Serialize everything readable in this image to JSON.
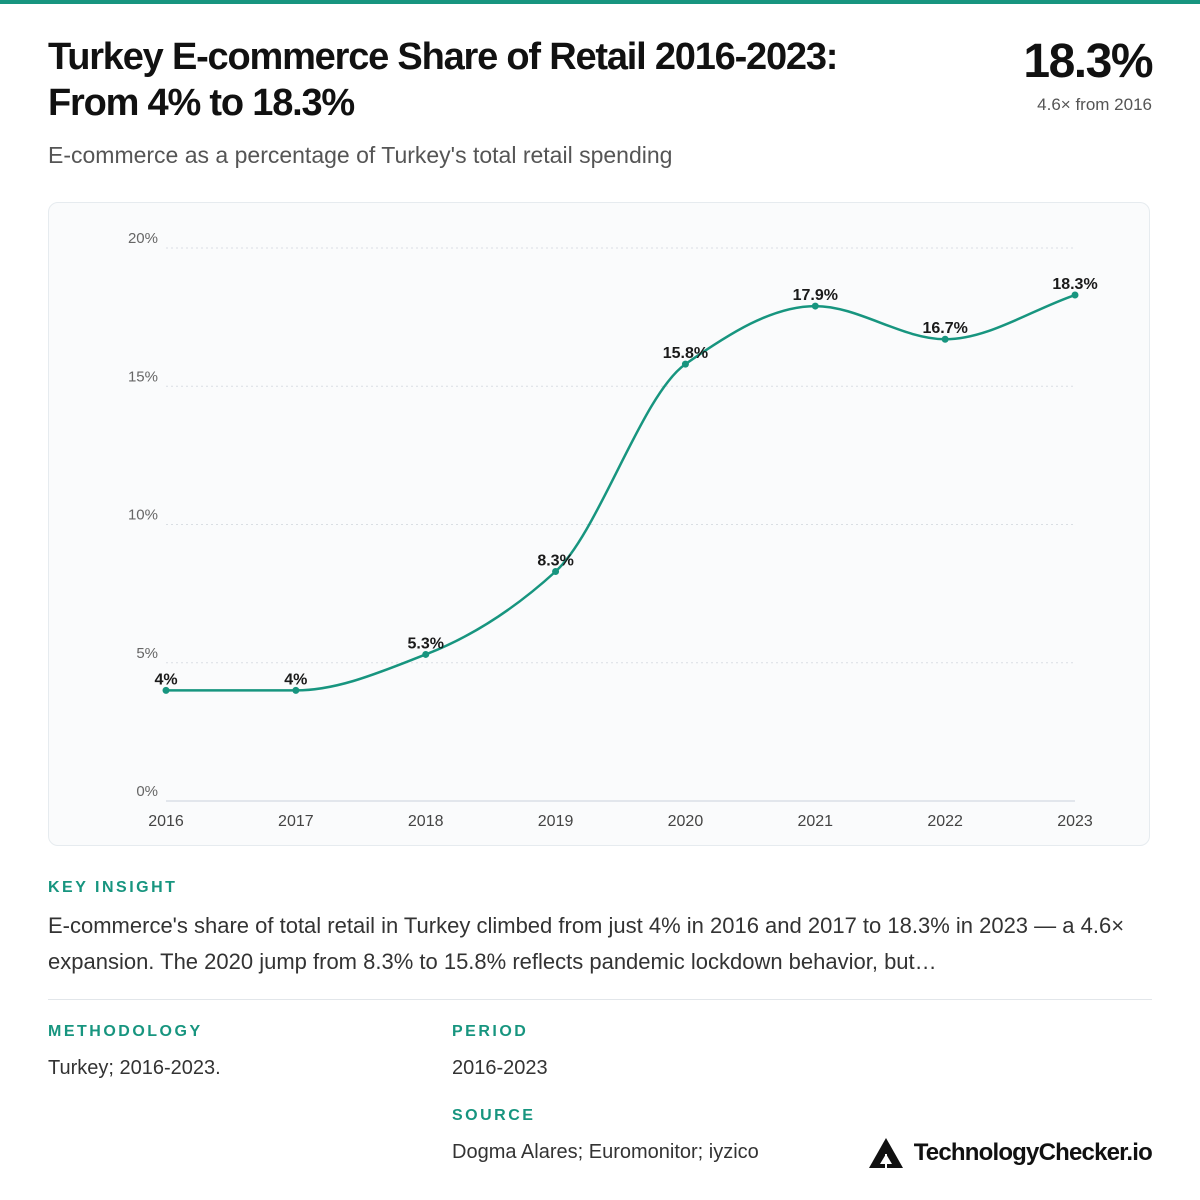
{
  "header": {
    "title_line1": "Turkey E-commerce Share of Retail 2016-2023:",
    "title_line2": "From 4% to 18.3%",
    "subtitle": "E-commerce as a percentage of Turkey's total retail spending",
    "kpi_value": "18.3%",
    "kpi_note": "4.6× from 2016"
  },
  "colors": {
    "accent": "#17957f",
    "grid": "#d9dee3",
    "card_bg": "#fafbfc"
  },
  "chart_data": {
    "type": "line",
    "categories": [
      "2016",
      "2017",
      "2018",
      "2019",
      "2020",
      "2021",
      "2022",
      "2023"
    ],
    "series": [
      {
        "values": [
          4,
          4,
          5.3,
          8.3,
          15.8,
          17.9,
          16.7,
          18.3
        ]
      }
    ],
    "data_labels": [
      "4%",
      "4%",
      "5.3%",
      "8.3%",
      "15.8%",
      "17.9%",
      "16.7%",
      "18.3%"
    ],
    "yticks": [
      0,
      5,
      10,
      15,
      20
    ],
    "ytick_labels": [
      "0%",
      "5%",
      "10%",
      "15%",
      "20%"
    ],
    "ylim": [
      0,
      20
    ],
    "grid": true,
    "curve": "smooth"
  },
  "insight": {
    "heading": "KEY INSIGHT",
    "text": "E-commerce's share of total retail in Turkey climbed from just 4% in 2016 and 2017 to 18.3% in 2023 — a 4.6× expansion. The 2020 jump from 8.3% to 15.8% reflects pandemic lockdown behavior, but…"
  },
  "methodology": {
    "heading": "METHODOLOGY",
    "text": "Turkey; 2016-2023."
  },
  "period": {
    "heading": "PERIOD",
    "text": "2016-2023"
  },
  "source": {
    "heading": "SOURCE",
    "text": "Dogma Alares; Euromonitor; iyzico"
  },
  "brand": {
    "name": "TechnologyChecker.io",
    "logo_icon": "triangle-logo-icon"
  }
}
